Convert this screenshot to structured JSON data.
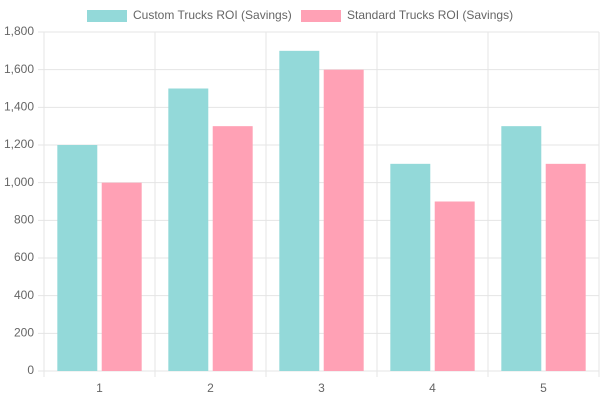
{
  "chart_data": {
    "type": "bar",
    "categories": [
      "1",
      "2",
      "3",
      "4",
      "5"
    ],
    "series": [
      {
        "name": "Custom Trucks ROI (Savings)",
        "color": "#93d9d9",
        "values": [
          1200,
          1500,
          1700,
          1100,
          1300
        ]
      },
      {
        "name": "Standard Trucks ROI (Savings)",
        "color": "#ffa1b5",
        "values": [
          1000,
          1300,
          1600,
          900,
          1100
        ]
      }
    ],
    "ylim": [
      0,
      1800
    ],
    "yticks": [
      0,
      200,
      400,
      600,
      800,
      {
        "value": 1000,
        "label": "1,000"
      },
      {
        "value": 1200,
        "label": "1,200"
      },
      {
        "value": 1400,
        "label": "1,400"
      },
      {
        "value": 1600,
        "label": "1,600"
      },
      {
        "value": 1800,
        "label": "1,800"
      }
    ],
    "grid": true,
    "legend": "top"
  }
}
